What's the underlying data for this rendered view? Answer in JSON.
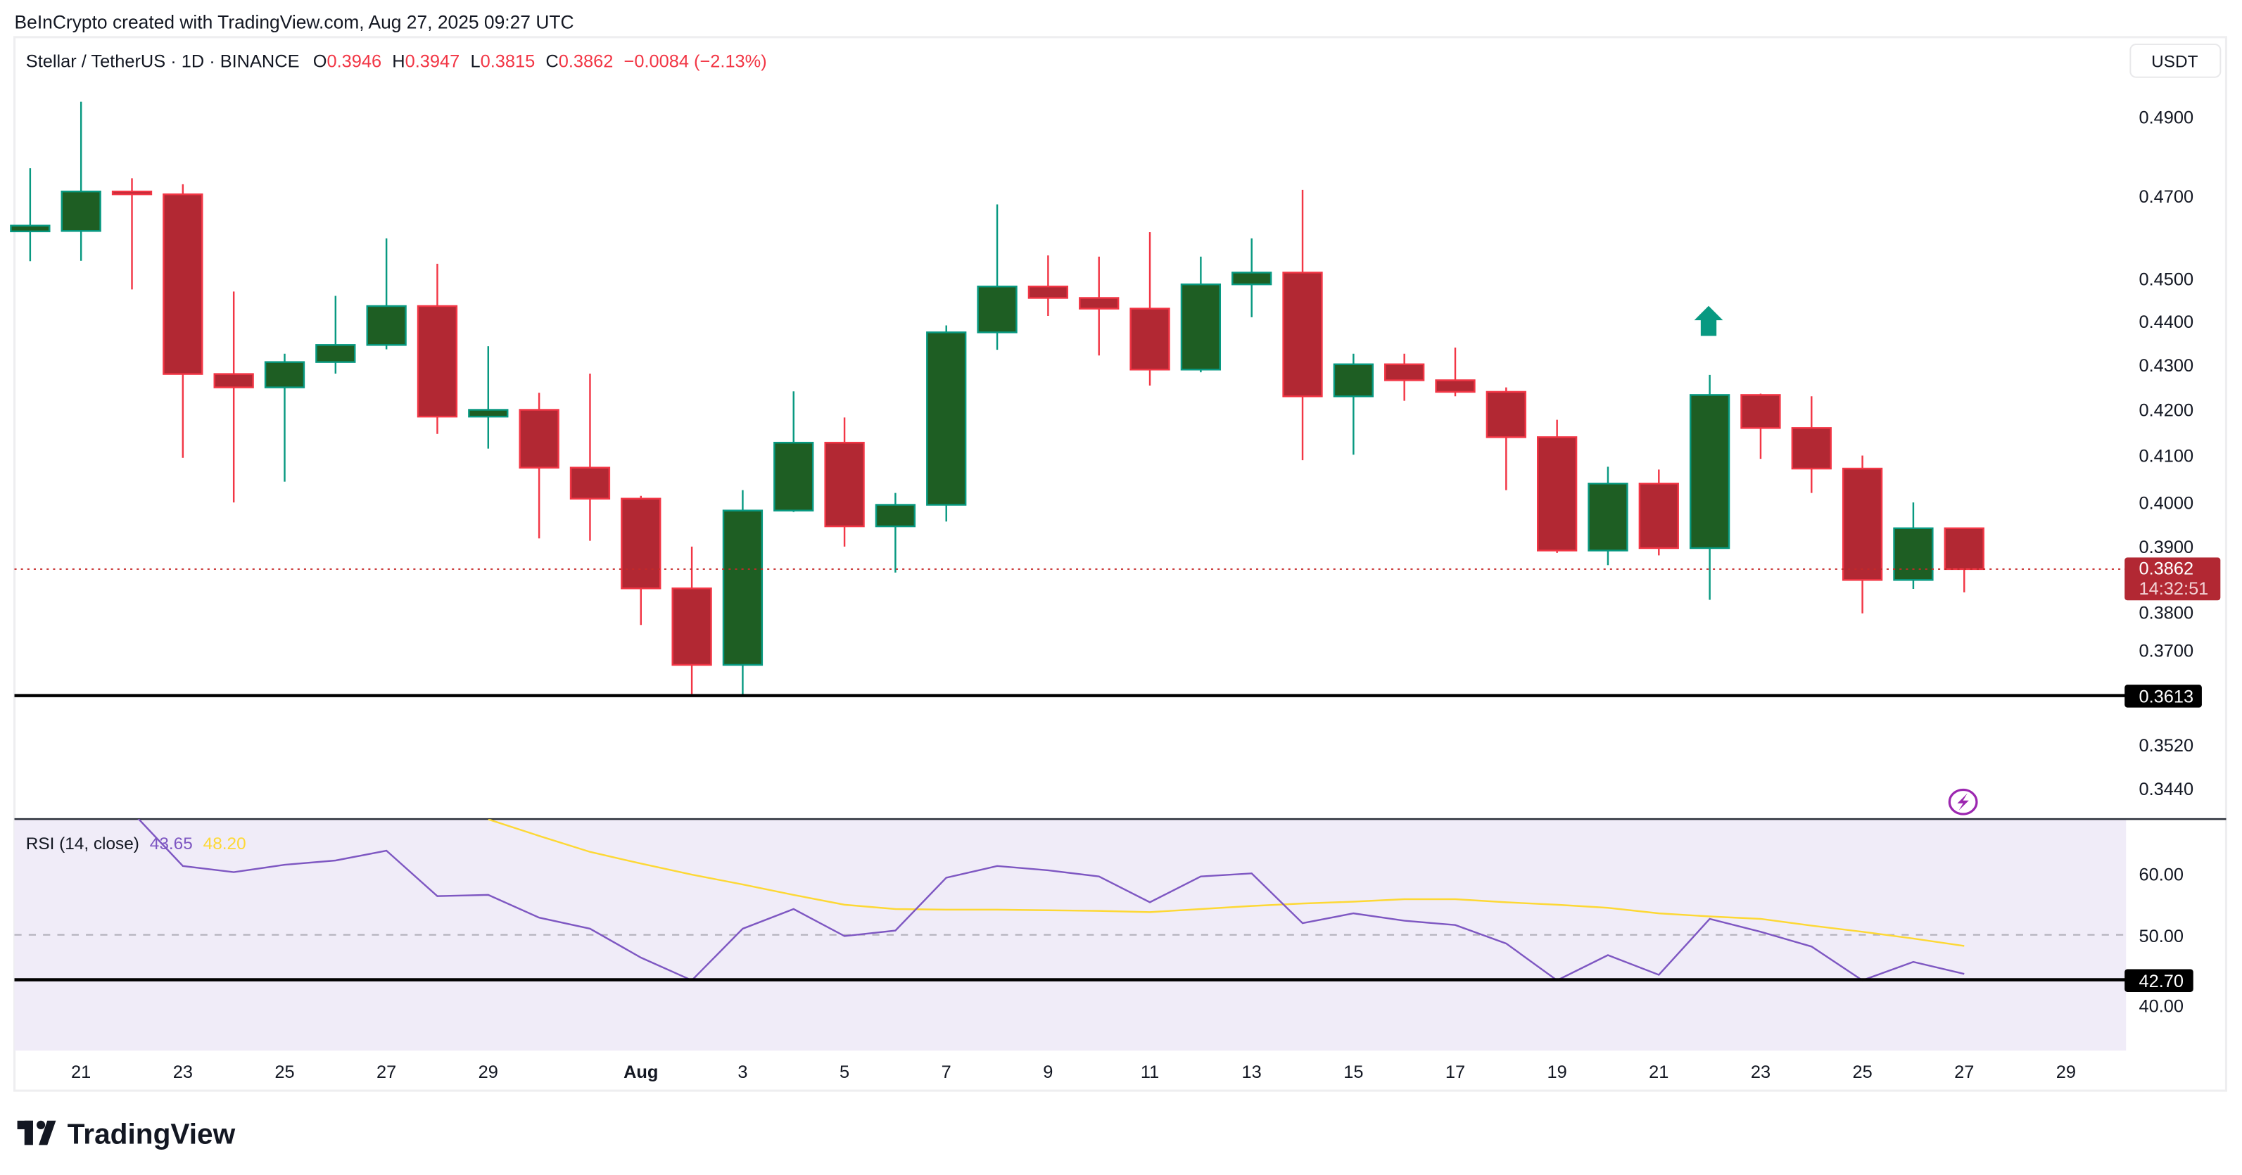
{
  "header": {
    "attribution": "BeInCrypto created with TradingView.com, Aug 27, 2025 09:27 UTC"
  },
  "legend": {
    "symbol": "Stellar / TetherUS · 1D · BINANCE",
    "o_label": "O",
    "o_value": "0.3946",
    "h_label": "H",
    "h_value": "0.3947",
    "l_label": "L",
    "l_value": "0.3815",
    "c_label": "C",
    "c_value": "0.3862",
    "change": "−0.0084 (−2.13%)"
  },
  "currency_button": "USDT",
  "price_axis": {
    "ticks": [
      "0.4900",
      "0.4700",
      "0.4500",
      "0.4400",
      "0.4300",
      "0.4200",
      "0.4100",
      "0.4000",
      "0.3900",
      "0.3800",
      "0.3700",
      "0.3520",
      "0.3440"
    ],
    "last_price": "0.3862",
    "countdown": "14:32:51",
    "support_label": "0.3613"
  },
  "rsi": {
    "title": "RSI (14, close)",
    "value": "43.65",
    "ma_value": "48.20",
    "ticks": [
      "60.00",
      "50.00",
      "40.00"
    ],
    "support_label": "42.70"
  },
  "time_axis": [
    "21",
    "23",
    "25",
    "27",
    "29",
    "Aug",
    "3",
    "5",
    "7",
    "9",
    "11",
    "13",
    "15",
    "17",
    "19",
    "21",
    "23",
    "25",
    "27",
    "29"
  ],
  "logo": "TradingView",
  "colors": {
    "up_body": "#1e5e23",
    "up_border": "#089981",
    "down_body": "#b22833",
    "down_border": "#f23645",
    "rsi_line": "#7e57c2",
    "rsi_ma": "#fdd835",
    "rsi_bg": "#f0ecf8",
    "signal": "#9c27b0"
  },
  "chart_data": {
    "type": "candlestick",
    "title": "Stellar / TetherUS · 1D · BINANCE",
    "scale": "log",
    "ylim": [
      0.336,
      0.51
    ],
    "start_date": "Jul 20",
    "dates": [
      "Jul 20",
      "Jul 21",
      "Jul 22",
      "Jul 23",
      "Jul 24",
      "Jul 25",
      "Jul 26",
      "Jul 27",
      "Jul 28",
      "Jul 29",
      "Jul 30",
      "Jul 31",
      "Aug 1",
      "Aug 2",
      "Aug 3",
      "Aug 4",
      "Aug 5",
      "Aug 6",
      "Aug 7",
      "Aug 8",
      "Aug 9",
      "Aug 10",
      "Aug 11",
      "Aug 12",
      "Aug 13",
      "Aug 14",
      "Aug 15",
      "Aug 16",
      "Aug 17",
      "Aug 18",
      "Aug 19",
      "Aug 20",
      "Aug 21",
      "Aug 22",
      "Aug 23",
      "Aug 24",
      "Aug 25",
      "Aug 26",
      "Aug 27"
    ],
    "ohlc": [
      [
        0.4614,
        0.477,
        0.4542,
        0.4628
      ],
      [
        0.4615,
        0.494,
        0.4543,
        0.4712
      ],
      [
        0.4712,
        0.4745,
        0.4475,
        0.4705
      ],
      [
        0.4705,
        0.473,
        0.4095,
        0.428
      ],
      [
        0.428,
        0.447,
        0.4,
        0.425
      ],
      [
        0.425,
        0.4326,
        0.4044,
        0.4307
      ],
      [
        0.4307,
        0.446,
        0.4281,
        0.4346
      ],
      [
        0.4346,
        0.4597,
        0.4336,
        0.4436
      ],
      [
        0.4436,
        0.4536,
        0.4147,
        0.4185
      ],
      [
        0.4185,
        0.4343,
        0.4115,
        0.42
      ],
      [
        0.42,
        0.4238,
        0.3925,
        0.4074
      ],
      [
        0.4074,
        0.4281,
        0.392,
        0.4008
      ],
      [
        0.4008,
        0.4014,
        0.375,
        0.3823
      ],
      [
        0.3823,
        0.3908,
        0.3616,
        0.3672
      ],
      [
        0.3672,
        0.4026,
        0.3612,
        0.3983
      ],
      [
        0.3983,
        0.4241,
        0.398,
        0.4128
      ],
      [
        0.4128,
        0.4183,
        0.3908,
        0.395
      ],
      [
        0.395,
        0.402,
        0.3855,
        0.3995
      ],
      [
        0.3995,
        0.4391,
        0.396,
        0.4375
      ],
      [
        0.4375,
        0.468,
        0.4335,
        0.4482
      ],
      [
        0.4482,
        0.4556,
        0.4413,
        0.4455
      ],
      [
        0.4455,
        0.4553,
        0.4322,
        0.443
      ],
      [
        0.443,
        0.4612,
        0.4254,
        0.429
      ],
      [
        0.429,
        0.4553,
        0.4284,
        0.4487
      ],
      [
        0.4487,
        0.4597,
        0.441,
        0.4515
      ],
      [
        0.4515,
        0.4716,
        0.409,
        0.423
      ],
      [
        0.423,
        0.4326,
        0.4102,
        0.4302
      ],
      [
        0.4302,
        0.4326,
        0.422,
        0.4266
      ],
      [
        0.4266,
        0.434,
        0.423,
        0.424
      ],
      [
        0.424,
        0.425,
        0.4026,
        0.414
      ],
      [
        0.414,
        0.4178,
        0.3895,
        0.39
      ],
      [
        0.39,
        0.4076,
        0.387,
        0.404
      ],
      [
        0.404,
        0.407,
        0.389,
        0.3905
      ],
      [
        0.3905,
        0.4278,
        0.38,
        0.4233
      ],
      [
        0.4233,
        0.4236,
        0.4093,
        0.416
      ],
      [
        0.416,
        0.423,
        0.402,
        0.4072
      ],
      [
        0.4072,
        0.41,
        0.3773,
        0.384
      ],
      [
        0.384,
        0.4,
        0.3822,
        0.3946
      ],
      [
        0.3946,
        0.3947,
        0.3815,
        0.3862
      ]
    ],
    "support_level": 0.3613,
    "last_price": 0.3862,
    "signal_up_arrow_date": "Aug 22",
    "signal_marker_date": "Aug 27",
    "rsi": {
      "start_index": 2,
      "values": [
        70,
        61.2,
        60.2,
        61.4,
        62.1,
        63.7,
        56.3,
        56.5,
        52.8,
        51.0,
        46.3,
        42.6,
        51.0,
        54.2,
        49.8,
        50.7,
        59.3,
        61.2,
        60.5,
        59.5,
        55.3,
        59.5,
        60.0,
        51.9,
        53.5,
        52.3,
        51.6,
        48.6,
        42.6,
        46.7,
        43.5,
        52.6,
        50.5,
        48.1,
        42.6,
        45.6,
        43.65
      ],
      "ma_start_index": 9,
      "ma_values": [
        68.8,
        66.1,
        63.5,
        61.6,
        59.8,
        58.2,
        56.5,
        54.9,
        54.2,
        54.1,
        54.1,
        54.0,
        53.9,
        53.7,
        54.2,
        54.7,
        55.1,
        55.4,
        55.8,
        55.8,
        55.3,
        54.9,
        54.4,
        53.5,
        53.0,
        52.6,
        51.5,
        50.5,
        49.4,
        48.2
      ],
      "support_level": 42.7,
      "middle_line": 50
    }
  }
}
